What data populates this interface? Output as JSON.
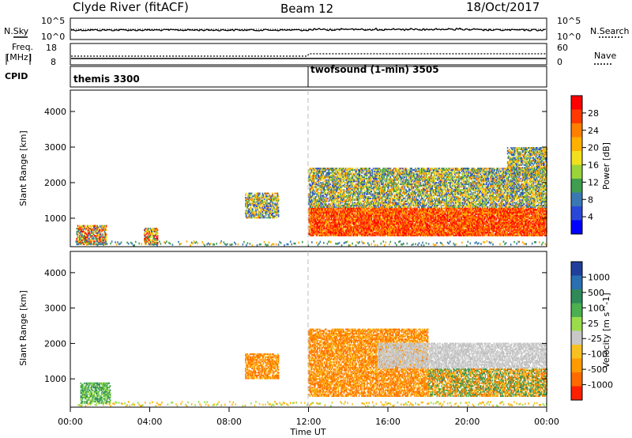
{
  "header": {
    "station": "Clyde River (fitACF)",
    "beam": "Beam 12",
    "date": "18/Oct/2017"
  },
  "nsky_panel": {
    "left_label": "N.Sky",
    "right_label": "N.Search",
    "left_ticks": [
      "10^5",
      "10^0"
    ],
    "right_ticks": [
      "10^5",
      "10^0"
    ]
  },
  "freq_panel": {
    "left_label_1": "Freq.",
    "left_label_2": "[MHz]",
    "right_label": "Nave",
    "left_ticks": [
      "18",
      "8"
    ],
    "right_ticks": [
      "60",
      "0"
    ]
  },
  "cpid_panel": {
    "label": "CPID",
    "entries": [
      {
        "start_hour": 0,
        "text": "themis 3300"
      },
      {
        "start_hour": 12,
        "text": "twofsound (1-min) 3505"
      }
    ]
  },
  "x_axis": {
    "label": "Time UT",
    "ticks": [
      "00:00",
      "04:00",
      "08:00",
      "12:00",
      "16:00",
      "20:00",
      "00:00"
    ]
  },
  "chart_data": [
    {
      "type": "heatmap",
      "name": "power",
      "ylabel": "Slant Range [km]",
      "xlim_hours": [
        0,
        24
      ],
      "ylim": [
        200,
        4600
      ],
      "yticks": [
        "1000",
        "2000",
        "3000",
        "4000"
      ],
      "colorbar_label": "Power [dB]",
      "colorbar_ticks": [
        "28",
        "24",
        "20",
        "16",
        "12",
        "8",
        "4"
      ],
      "colorbar_colors": [
        "#ff0000",
        "#ff3a00",
        "#ff7f00",
        "#ffb000",
        "#f0e020",
        "#9ad33a",
        "#3f9d50",
        "#3a78b4",
        "#2a48d8",
        "#0000ff"
      ],
      "regions": [
        {
          "t0": 0.3,
          "t1": 1.8,
          "r0": 250,
          "r1": 800,
          "level": "mixed_low"
        },
        {
          "t0": 3.7,
          "t1": 4.4,
          "r0": 250,
          "r1": 700,
          "level": "mixed_low"
        },
        {
          "t0": 8.8,
          "t1": 10.5,
          "r0": 1000,
          "r1": 1700,
          "level": "mixed"
        },
        {
          "t0": 12.0,
          "t1": 24.0,
          "r0": 500,
          "r1": 1300,
          "level": "strong"
        },
        {
          "t0": 12.0,
          "t1": 24.0,
          "r0": 1300,
          "r1": 2400,
          "level": "mixed"
        },
        {
          "t0": 22.0,
          "t1": 24.0,
          "r0": 2200,
          "r1": 3000,
          "level": "mixed"
        }
      ]
    },
    {
      "type": "heatmap",
      "name": "velocity",
      "ylabel": "Slant Range [km]",
      "xlim_hours": [
        0,
        24
      ],
      "ylim": [
        200,
        4600
      ],
      "yticks": [
        "1000",
        "2000",
        "3000",
        "4000"
      ],
      "colorbar_label": "Velocity [m s^-1]",
      "colorbar_ticks": [
        "1000",
        "500",
        "100",
        "25",
        "-25",
        "-100",
        "-500",
        "-1000"
      ],
      "colorbar_colors": [
        "#1f3f9a",
        "#2a6fb0",
        "#2f8a5a",
        "#4caf50",
        "#9bdc4a",
        "#c8c8c8",
        "#f8c020",
        "#ff9a00",
        "#ff6a00",
        "#ff2000"
      ],
      "regions": [
        {
          "t0": 0.5,
          "t1": 2.0,
          "r0": 300,
          "r1": 900,
          "level": "green"
        },
        {
          "t0": 8.8,
          "t1": 10.5,
          "r0": 1000,
          "r1": 1700,
          "level": "orange"
        },
        {
          "t0": 12.0,
          "t1": 18.0,
          "r0": 500,
          "r1": 2400,
          "level": "orange"
        },
        {
          "t0": 18.0,
          "t1": 24.0,
          "r0": 500,
          "r1": 1300,
          "level": "mixed"
        },
        {
          "t0": 15.5,
          "t1": 24.0,
          "r0": 1300,
          "r1": 2000,
          "level": "grey"
        }
      ]
    }
  ],
  "colors": {
    "axis": "#000000",
    "divider": "#bbbbbb"
  }
}
